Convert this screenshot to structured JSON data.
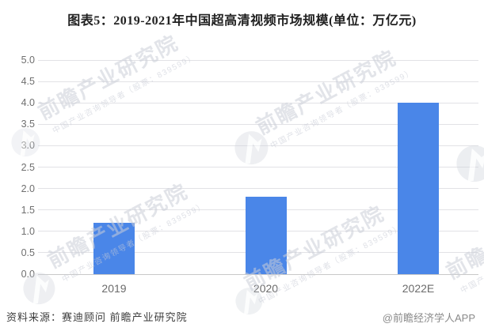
{
  "title": "图表5：2019-2021年中国超高清视频市场规模(单位：万亿元)",
  "chart_data": {
    "type": "bar",
    "title": "2019-2021年中国超高清视频市场规模",
    "unit": "万亿元",
    "categories": [
      "2019",
      "2020",
      "2022E"
    ],
    "values": [
      1.2,
      1.8,
      4.0
    ],
    "ylim": [
      0,
      5
    ],
    "ytick_step": 0.5,
    "ytick_format_decimals": 1,
    "xlabel": "",
    "ylabel": "",
    "grid": true,
    "legend": false,
    "bar_color": "#4a86e8",
    "grid_color": "#e2e2e6",
    "axis_color": "#c9c9c9",
    "tick_label_color": "#6f6f6f"
  },
  "footer": {
    "source": "资料来源：赛迪顾问 前瞻产业研究院",
    "credit": "@前瞻经济学人APP"
  },
  "watermark": {
    "text": "前瞻产业研究院",
    "subtext": "中国产业咨询领导者（股票：839599）",
    "logo": "qianzhan-logo"
  }
}
